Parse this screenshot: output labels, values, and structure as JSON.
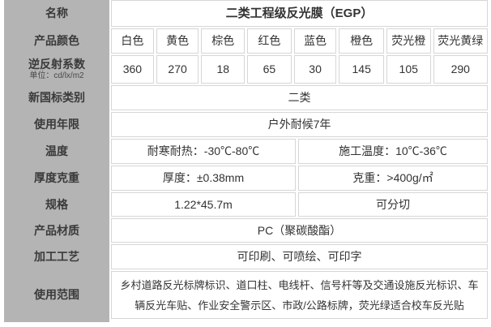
{
  "colors": {
    "header_bg": "#b4b4b4",
    "cell_border": "#d6d6d6",
    "cell_bg": "#ffffff",
    "text": "#333333"
  },
  "table": {
    "rows": [
      {
        "label": "名称",
        "value": "二类工程级反光膜（EGP）"
      },
      {
        "label": "产品颜色",
        "values": [
          "白色",
          "黄色",
          "棕色",
          "红色",
          "蓝色",
          "橙色",
          "荧光橙",
          "荧光黄绿"
        ]
      },
      {
        "label": "逆反射系数",
        "sublabel": "单位：cd/lx/m2",
        "values": [
          "360",
          "270",
          "18",
          "65",
          "30",
          "145",
          "105",
          "290"
        ]
      },
      {
        "label": "新国标类别",
        "value": "二类"
      },
      {
        "label": "使用年限",
        "value": "户外耐候7年"
      },
      {
        "label": "温度",
        "values": [
          "耐寒耐热：-30℃-80℃",
          "施工温度：10℃-36℃"
        ]
      },
      {
        "label": "厚度克重",
        "values": [
          "厚度：±0.38mm",
          "克重：>400g/㎡"
        ]
      },
      {
        "label": "规格",
        "values": [
          "1.22*45.7m",
          "可分切"
        ]
      },
      {
        "label": "产品材质",
        "value": "PC（聚碳酸酯）"
      },
      {
        "label": "加工工艺",
        "value": "可印刷、可喷绘、可印字"
      },
      {
        "label": "使用范围",
        "value": "乡村道路反光标牌标识、道口柱、电线杆、信号杆等及交通设施反光标识、车辆反光车贴、作业安全警示区、市政/公路标牌，荧光绿适合校车反光贴"
      }
    ]
  }
}
